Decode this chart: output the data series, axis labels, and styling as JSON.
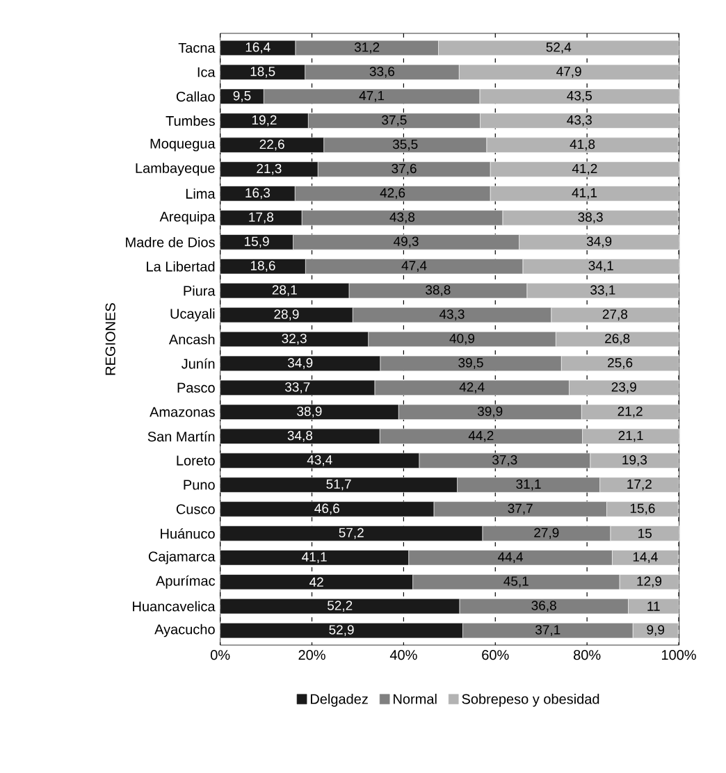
{
  "chart_data": {
    "type": "bar",
    "orientation": "horizontal",
    "stacked": true,
    "ylabel": "REGIONES",
    "categories": [
      "Tacna",
      "Ica",
      "Callao",
      "Tumbes",
      "Moquegua",
      "Lambayeque",
      "Lima",
      "Arequipa",
      "Madre de Dios",
      "La Libertad",
      "Piura",
      "Ucayali",
      "Ancash",
      "Junín",
      "Pasco",
      "Amazonas",
      "San Martín",
      "Loreto",
      "Puno",
      "Cusco",
      "Huánuco",
      "Cajamarca",
      "Apurímac",
      "Huancavelica",
      "Ayacucho"
    ],
    "series": [
      {
        "name": "Delgadez",
        "color": "#1a1a1a",
        "values": [
          16.4,
          18.5,
          9.5,
          19.2,
          22.6,
          21.3,
          16.3,
          17.8,
          15.9,
          18.6,
          28.1,
          28.9,
          32.3,
          34.9,
          33.7,
          38.9,
          34.8,
          43.4,
          51.7,
          46.6,
          57.2,
          41.1,
          42,
          52.2,
          52.9
        ],
        "value_labels": [
          "16,4",
          "18,5",
          "9,5",
          "19,2",
          "22,6",
          "21,3",
          "16,3",
          "17,8",
          "15,9",
          "18,6",
          "28,1",
          "28,9",
          "32,3",
          "34,9",
          "33,7",
          "38,9",
          "34,8",
          "43,4",
          "51,7",
          "46,6",
          "57,2",
          "41,1",
          "42",
          "52,2",
          "52,9"
        ]
      },
      {
        "name": "Normal",
        "color": "#808080",
        "values": [
          31.2,
          33.6,
          47.1,
          37.5,
          35.5,
          37.6,
          42.6,
          43.8,
          49.3,
          47.4,
          38.8,
          43.3,
          40.9,
          39.5,
          42.4,
          39.9,
          44.2,
          37.3,
          31.1,
          37.7,
          27.9,
          44.4,
          45.1,
          36.8,
          37.1
        ],
        "value_labels": [
          "31,2",
          "33,6",
          "47,1",
          "37,5",
          "35,5",
          "37,6",
          "42,6",
          "43,8",
          "49,3",
          "47,4",
          "38,8",
          "43,3",
          "40,9",
          "39,5",
          "42,4",
          "39,9",
          "44,2",
          "37,3",
          "31,1",
          "37,7",
          "27,9",
          "44,4",
          "45,1",
          "36,8",
          "37,1"
        ]
      },
      {
        "name": "Sobrepeso y obesidad",
        "color": "#b3b3b3",
        "values": [
          52.4,
          47.9,
          43.5,
          43.3,
          41.8,
          41.2,
          41.1,
          38.3,
          34.9,
          34.1,
          33.1,
          27.8,
          26.8,
          25.6,
          23.9,
          21.2,
          21.1,
          19.3,
          17.2,
          15.6,
          15,
          14.4,
          12.9,
          11,
          9.9
        ],
        "value_labels": [
          "52,4",
          "47,9",
          "43,5",
          "43,3",
          "41,8",
          "41,2",
          "41,1",
          "38,3",
          "34,9",
          "34,1",
          "33,1",
          "27,8",
          "26,8",
          "25,6",
          "23,9",
          "21,2",
          "21,1",
          "19,3",
          "17,2",
          "15,6",
          "15",
          "14,4",
          "12,9",
          "11",
          "9,9"
        ]
      }
    ],
    "xlim": [
      0,
      100.1
    ],
    "xticks": [
      {
        "value": 0,
        "label": "0%"
      },
      {
        "value": 20,
        "label": "20%"
      },
      {
        "value": 40,
        "label": "40%"
      },
      {
        "value": 60,
        "label": "60%"
      },
      {
        "value": 80,
        "label": "80%"
      },
      {
        "value": 100,
        "label": "100%"
      }
    ],
    "grid": "x",
    "legend": "bottom"
  }
}
